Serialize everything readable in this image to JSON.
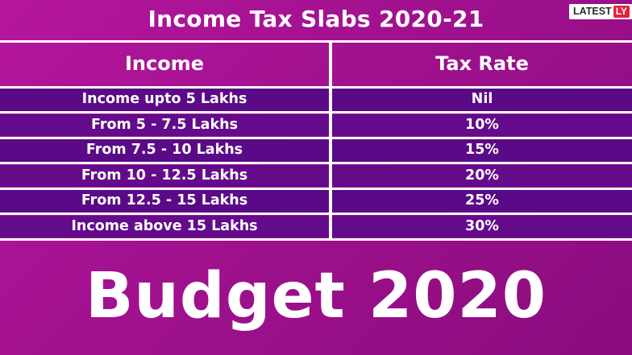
{
  "title": "Income Tax Slabs 2020-21",
  "logo": {
    "text": "LATEST",
    "badge": "LY"
  },
  "table": {
    "headers": {
      "income": "Income",
      "rate": "Tax Rate"
    },
    "rows": [
      {
        "income": "Income upto 5 Lakhs",
        "rate": "Nil"
      },
      {
        "income": "From 5 - 7.5 Lakhs",
        "rate": "10%"
      },
      {
        "income": "From 7.5 - 10 Lakhs",
        "rate": "15%"
      },
      {
        "income": "From 10 - 12.5 Lakhs",
        "rate": "20%"
      },
      {
        "income": "From 12.5 - 15 Lakhs",
        "rate": "25%"
      },
      {
        "income": "Income above 15 Lakhs",
        "rate": "30%"
      }
    ]
  },
  "footer": {
    "headline": "Budget 2020"
  },
  "colors": {
    "background": "#a0118e",
    "row": "#5a0a86",
    "divider": "#ffffff",
    "logo_badge": "#e5203a"
  }
}
